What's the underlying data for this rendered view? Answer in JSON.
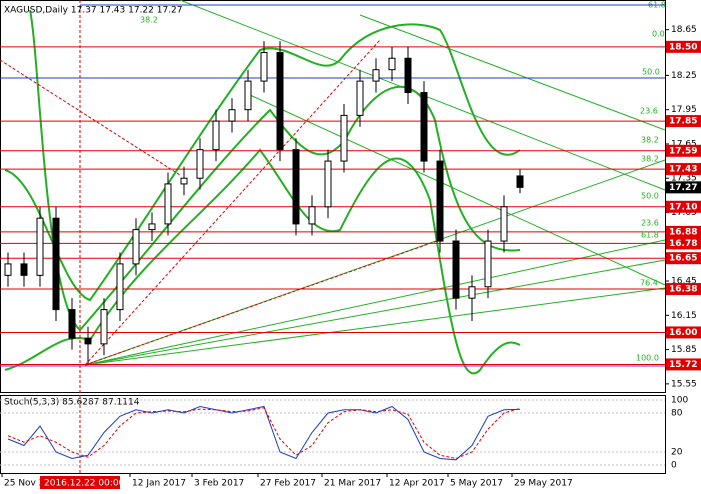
{
  "chart_data": [
    {
      "type": "candlestick",
      "title": "XAGUSD,Daily 17.37 17.43 17.22 17.27",
      "open": [
        16.5,
        16.6,
        16.5,
        17.0,
        16.2,
        15.95,
        15.9,
        16.2,
        16.6,
        16.9,
        16.95,
        17.3,
        17.35,
        17.6,
        17.85,
        17.95,
        18.2,
        18.45,
        17.6,
        16.95,
        17.1,
        17.5,
        17.9,
        18.2,
        18.3,
        18.4,
        18.1,
        17.5,
        16.8,
        16.3,
        16.4,
        16.8,
        17.37
      ],
      "high": [
        16.7,
        16.7,
        17.1,
        17.1,
        16.3,
        16.05,
        16.3,
        16.7,
        17.0,
        17.05,
        17.4,
        17.45,
        17.7,
        17.95,
        18.05,
        18.3,
        18.55,
        18.55,
        17.7,
        17.2,
        17.6,
        18.0,
        18.3,
        18.4,
        18.5,
        18.5,
        18.2,
        17.6,
        16.9,
        16.5,
        16.9,
        17.2,
        17.43
      ],
      "low": [
        16.4,
        16.4,
        16.4,
        16.1,
        15.85,
        15.72,
        15.8,
        16.1,
        16.5,
        16.8,
        16.85,
        17.2,
        17.25,
        17.5,
        17.75,
        17.85,
        18.1,
        17.5,
        16.85,
        16.85,
        17.0,
        17.4,
        17.8,
        18.1,
        18.2,
        18.0,
        17.4,
        16.7,
        16.2,
        16.1,
        16.3,
        16.7,
        17.22
      ],
      "close": [
        16.6,
        16.5,
        17.0,
        16.2,
        15.95,
        15.9,
        16.2,
        16.6,
        16.9,
        16.95,
        17.3,
        17.35,
        17.6,
        17.85,
        17.95,
        18.2,
        18.45,
        17.6,
        16.95,
        17.1,
        17.5,
        17.9,
        18.2,
        18.3,
        18.4,
        18.1,
        17.5,
        16.8,
        16.3,
        16.4,
        16.8,
        17.1,
        17.27
      ],
      "ylim": [
        15.47,
        18.91
      ],
      "yticks": [
        15.55,
        15.85,
        16.15,
        16.45,
        16.75,
        17.05,
        17.35,
        17.65,
        17.95,
        18.25,
        18.65
      ],
      "levels": [
        {
          "value": 18.5,
          "label": "18.50",
          "color": "#e00000"
        },
        {
          "value": 17.85,
          "label": "17.85",
          "color": "#e00000"
        },
        {
          "value": 17.59,
          "label": "17.59",
          "color": "#e00000"
        },
        {
          "value": 17.43,
          "label": "17.43",
          "color": "#e00000"
        },
        {
          "value": 17.1,
          "label": "17.10",
          "color": "#e00000"
        },
        {
          "value": 16.88,
          "label": "16.88",
          "color": "#e00000"
        },
        {
          "value": 16.78,
          "label": "16.78",
          "color": "#e00000"
        },
        {
          "value": 16.65,
          "label": "16.65",
          "color": "#e00000"
        },
        {
          "value": 16.38,
          "label": "16.38",
          "color": "#e00000"
        },
        {
          "value": 16.0,
          "label": "16.00",
          "color": "#e00000"
        },
        {
          "value": 15.72,
          "label": "15.72",
          "color": "#e00000"
        }
      ],
      "last_price": {
        "value": 17.27,
        "label": "17.27"
      },
      "fib_labels": [
        "61.8",
        "38.2",
        "0.0",
        "50.0",
        "23.6",
        "38.2",
        "38.2",
        "50.0",
        "23.6",
        "61.8",
        "76.4",
        "100.0"
      ],
      "x_labels": [
        "25 Nov 2016",
        "12 Jan 2017",
        "3 Feb 2017",
        "27 Feb 2017",
        "21 Mar 2017",
        "12 Apr 2017",
        "5 May 2017",
        "29 May 2017"
      ],
      "crosshair_label": "2016.12.22 00:00"
    },
    {
      "type": "stochastic",
      "title": "Stoch(5,3,3) 85.6287 87.1114",
      "series": [
        {
          "name": "main",
          "color": "#1a3cc8",
          "values": [
            40,
            30,
            60,
            20,
            10,
            15,
            50,
            75,
            85,
            80,
            85,
            80,
            90,
            85,
            80,
            85,
            90,
            20,
            10,
            50,
            80,
            85,
            85,
            80,
            90,
            70,
            20,
            10,
            8,
            30,
            75,
            85,
            85.6287
          ]
        },
        {
          "name": "signal",
          "color": "#e00000",
          "values": [
            45,
            35,
            45,
            35,
            20,
            12,
            30,
            60,
            80,
            82,
            83,
            82,
            86,
            85,
            82,
            83,
            88,
            40,
            15,
            30,
            65,
            82,
            85,
            82,
            85,
            78,
            35,
            15,
            10,
            20,
            55,
            80,
            87.1114
          ]
        }
      ],
      "ylim": [
        0,
        100
      ],
      "yticks": [
        0,
        20,
        80,
        100
      ]
    }
  ]
}
